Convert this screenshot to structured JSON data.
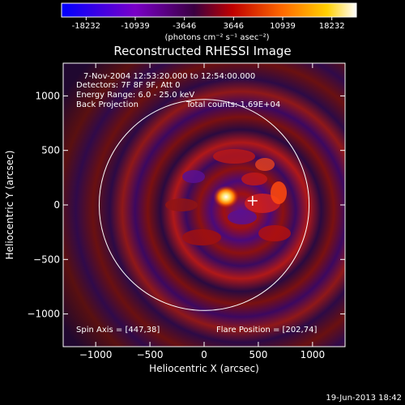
{
  "footer_timestamp": "19-Jun-2013 18:42",
  "colorbar": {
    "ticks": [
      "-18232",
      "-10939",
      "-3646",
      "3646",
      "10939",
      "18232"
    ],
    "units": "(photons cm⁻² s⁻¹ asec⁻²)",
    "range": [
      -18232,
      18232
    ],
    "colors": [
      "#0000ff",
      "#7a00c8",
      "#3a0040",
      "#c00000",
      "#ff6a00",
      "#ffd000",
      "#ffffff"
    ]
  },
  "info": {
    "time_range": "7-Nov-2004 12:53:20.000 to 12:54:00.000",
    "detectors": "Detectors: 7F 8F 9F, Att 0",
    "energy_range": "Energy Range: 6.0 - 25.0 keV",
    "method": "Back Projection",
    "total_counts": "Total counts: 1.69E+04",
    "spin_axis": "Spin Axis = [447,38]",
    "flare_position": "Flare Position = [202,74]"
  },
  "chart_data": {
    "type": "heatmap",
    "title": "Reconstructed RHESSI Image",
    "xlabel": "Heliocentric X (arcsec)",
    "ylabel": "Heliocentric Y (arcsec)",
    "xlim": [
      -1300,
      1300
    ],
    "ylim": [
      -1300,
      1300
    ],
    "xticks": [
      -1000,
      -500,
      0,
      500,
      1000
    ],
    "yticks": [
      -1000,
      -500,
      0,
      500,
      1000
    ],
    "xtick_labels": [
      "−1000",
      "−500",
      "0",
      "500",
      "1000"
    ],
    "ytick_labels": [
      "−1000",
      "−500",
      "0",
      "500",
      "1000"
    ],
    "spin_axis": [
      447,
      38
    ],
    "flare_position": [
      202,
      74
    ],
    "solar_limb_radius": 968,
    "colors": {
      "limb": "#ffffff",
      "marker": "#ffffff",
      "axes": "#ffffff"
    }
  }
}
